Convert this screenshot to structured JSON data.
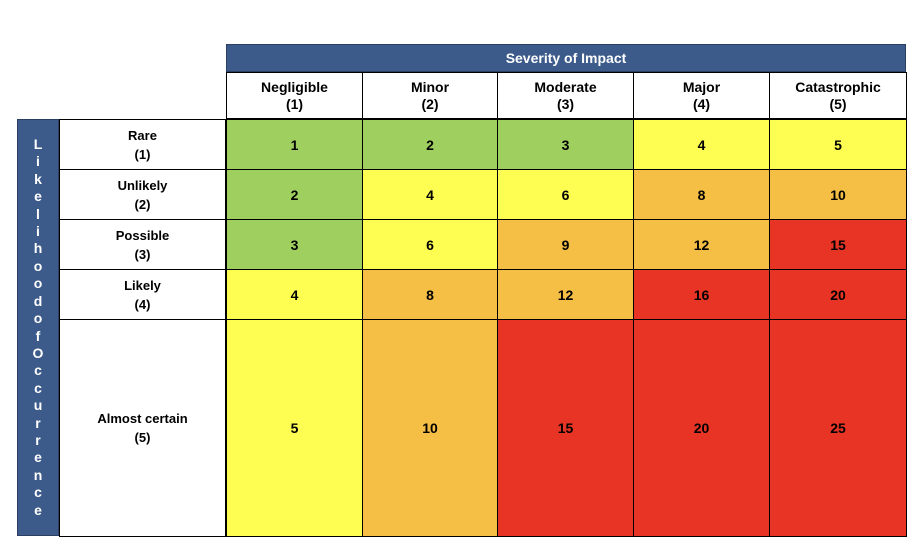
{
  "header": {
    "title": "Severity of Impact"
  },
  "side_label": {
    "text": "LikelihoodofOccurrence"
  },
  "columns": [
    {
      "name": "Negligible",
      "level": "(1)"
    },
    {
      "name": "Minor",
      "level": "(2)"
    },
    {
      "name": "Moderate",
      "level": "(3)"
    },
    {
      "name": "Major",
      "level": "(4)"
    },
    {
      "name": "Catastrophic",
      "level": "(5)"
    }
  ],
  "rows": [
    {
      "name": "Rare",
      "level": "(1)"
    },
    {
      "name": "Unlikely",
      "level": "(2)"
    },
    {
      "name": "Possible",
      "level": "(3)"
    },
    {
      "name": "Likely",
      "level": "(4)"
    },
    {
      "name": "Almost certain",
      "level": "(5)"
    }
  ],
  "matrix": [
    [
      1,
      2,
      3,
      4,
      5
    ],
    [
      2,
      4,
      6,
      8,
      10
    ],
    [
      3,
      6,
      9,
      12,
      15
    ],
    [
      4,
      8,
      12,
      16,
      20
    ],
    [
      5,
      10,
      15,
      20,
      25
    ]
  ],
  "colors": {
    "header_band": "#3c5a8a",
    "low": "#9fcf5f",
    "medium": "#fdfd52",
    "high": "#f5be45",
    "extreme": "#e83424"
  },
  "cell_levels": [
    [
      "low",
      "low",
      "low",
      "medium",
      "medium"
    ],
    [
      "low",
      "medium",
      "medium",
      "high",
      "high"
    ],
    [
      "low",
      "medium",
      "high",
      "high",
      "extreme"
    ],
    [
      "medium",
      "high",
      "high",
      "extreme",
      "extreme"
    ],
    [
      "medium",
      "high",
      "extreme",
      "extreme",
      "extreme"
    ]
  ]
}
